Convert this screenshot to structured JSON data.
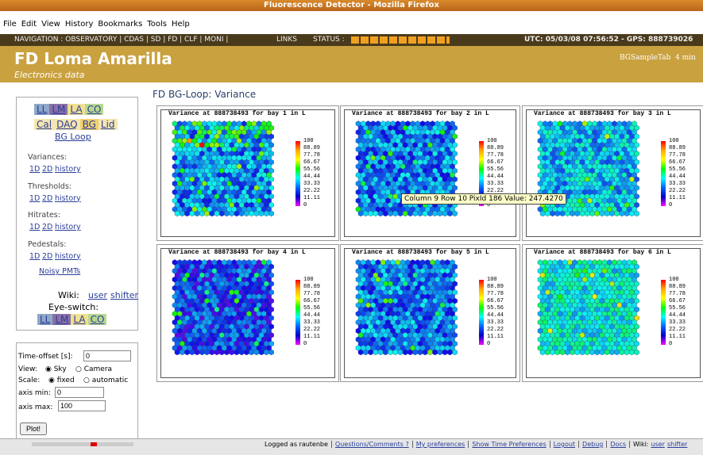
{
  "window": {
    "title": "Fluorescence Detector - Mozilla Firefox",
    "menu": [
      "File",
      "Edit",
      "View",
      "History",
      "Bookmarks",
      "Tools",
      "Help"
    ]
  },
  "nav": {
    "items": "NAVIGATION : OBSERVATORY | CDAS | SD | FD | CLF | MONI |",
    "links": "LINKS",
    "status": "STATUS :",
    "utc": "UTC: 05/03/08 07:56:52 - GPS: 888739026"
  },
  "header": {
    "title": "FD Loma Amarilla",
    "subtitle": "Electronics data",
    "tab": "BGSampleTab",
    "interval": "4 min"
  },
  "sidebar": {
    "eyes": [
      "LL",
      "LM",
      "LA",
      "CO"
    ],
    "tabs": [
      "Cal",
      "DAQ",
      "BG",
      "Lid"
    ],
    "bgloop": "BG Loop",
    "sections": [
      {
        "label": "Variances:",
        "links": [
          "1D",
          "2D",
          "history"
        ]
      },
      {
        "label": "Thresholds:",
        "links": [
          "1D",
          "2D",
          "history"
        ]
      },
      {
        "label": "Hitrates:",
        "links": [
          "1D",
          "2D",
          "history"
        ]
      },
      {
        "label": "Pedestals:",
        "links": [
          "1D",
          "2D",
          "history"
        ]
      }
    ],
    "noisy": "Noisy PMTs",
    "wiki": "Wiki:",
    "user": "user",
    "shifter": "shifter",
    "eyeswitch": "Eye-switch:"
  },
  "form": {
    "offset_label": "Time-offset [s]:",
    "offset": "0",
    "view_label": "View:",
    "view_options": [
      "Sky",
      "Camera"
    ],
    "scale_label": "Scale:",
    "scale_options": [
      "fixed",
      "automatic"
    ],
    "min_label": "axis min:",
    "min": "0",
    "max_label": "axis max:",
    "max": "100",
    "button": "Plot!"
  },
  "main": {
    "title": "FD BG-Loop: Variance",
    "panels": [
      "Variance at 888738493 for bay 1 in L",
      "Variance at 888738493 for bay 2 in L",
      "Variance at 888738493 for bay 3 in L",
      "Variance at 888738493 for bay 4 in L",
      "Variance at 888738493 for bay 5 in L",
      "Variance at 888738493 for bay 6 in L"
    ],
    "colorbar": [
      "100",
      "88.89",
      "77.78",
      "66.67",
      "55.56",
      "44.44",
      "33.33",
      "22.22",
      "11.11",
      "0"
    ],
    "tooltip": "Column 9 Row 10 PixId 186 Value: 247.4270"
  },
  "footer": {
    "logged": "Logged as rautenbe",
    "links": [
      "Questions/Comments ?",
      "My preferences",
      "Show Time Preferences",
      "Logout",
      "Debug",
      "Docs"
    ],
    "wiki": "Wiki:",
    "user": "user",
    "shifter": "shifter"
  }
}
